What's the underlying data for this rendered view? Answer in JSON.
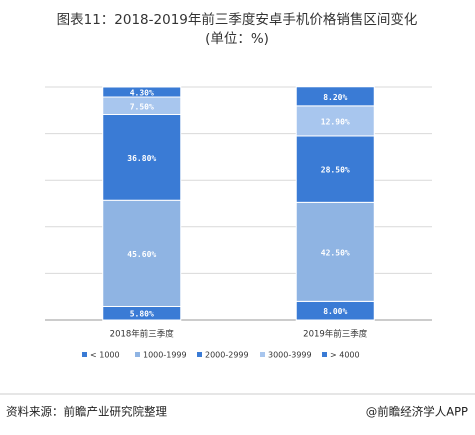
{
  "chart_data": {
    "type": "stacked_bar",
    "title": "图表11：2018-2019年前三季度安卓手机价格销售区间变化",
    "subtitle": "(单位：%)",
    "categories": [
      "2018年前三季度",
      "2019年前三季度"
    ],
    "series": [
      {
        "name": "< 1000",
        "color": "#3a7bd5",
        "values": [
          5.8,
          8.0
        ],
        "value_labels": [
          "5.80%",
          "8.00%"
        ]
      },
      {
        "name": "1000-1999",
        "color": "#8fb4e3",
        "values": [
          45.6,
          42.5
        ],
        "value_labels": [
          "45.60%",
          "42.50%"
        ]
      },
      {
        "name": "2000-2999",
        "color": "#3a7bd5",
        "values": [
          36.8,
          28.5
        ],
        "value_labels": [
          "36.80%",
          "28.50%"
        ]
      },
      {
        "name": "3000-3999",
        "color": "#a8c6ee",
        "values": [
          7.5,
          12.9
        ],
        "value_labels": [
          "7.50%",
          "12.90%"
        ]
      },
      {
        "name": "> 4000",
        "color": "#3a7bd5",
        "values": [
          4.3,
          8.2
        ],
        "value_labels": [
          "4.30%",
          "8.20%"
        ]
      }
    ],
    "ylim": [
      0,
      100
    ],
    "yticks": [
      0,
      20,
      40,
      60,
      80,
      100
    ],
    "grid": true,
    "source": "资料来源：前瞻产业研究院整理",
    "brand": "@前瞻经济学人APP"
  }
}
